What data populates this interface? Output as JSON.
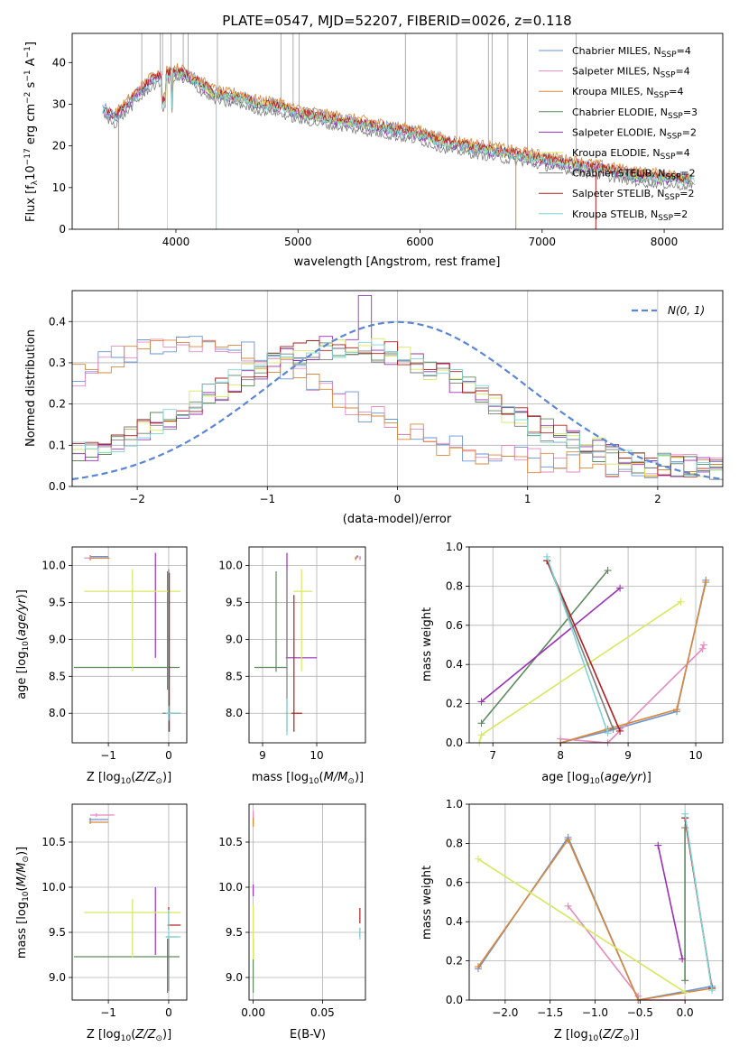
{
  "colors": {
    "Chabrier MILES": "#6a93d6",
    "Salpeter MILES": "#e58bbf",
    "Kroupa MILES": "#d8883a",
    "Chabrier ELODIE": "#5f8a5f",
    "Salpeter ELODIE": "#9a30b8",
    "Kroupa ELODIE": "#d7e860",
    "Chabrier STELIB": "#7f7f7f",
    "Salpeter STELIB": "#b01e1e",
    "Kroupa STELIB": "#7fd4d4"
  },
  "chart_data": [
    {
      "type": "line",
      "title": "PLATE=0547, MJD=52207, FIBERID=0026, z=0.118",
      "xlabel": "wavelength [Angstrom, rest frame]",
      "ylabel": "Flux [f_λ10^-17 erg cm^-2 s^-1 A^-1]",
      "xlim": [
        3150,
        8480
      ],
      "ylim": [
        0,
        47
      ],
      "xticks": [
        4000,
        5000,
        6000,
        7000,
        8000
      ],
      "yticks": [
        0,
        10,
        20,
        30,
        40
      ],
      "legend_position": "top-right",
      "grid": false,
      "continuum": {
        "x": [
          3400,
          3500,
          3600,
          3700,
          3800,
          3900,
          4000,
          4100,
          4200,
          4300,
          4400,
          4500,
          4600,
          4700,
          4800,
          4900,
          5000,
          5200,
          5400,
          5600,
          5800,
          6000,
          6200,
          6400,
          6600,
          6800,
          7000,
          7200,
          7400,
          7600,
          7800,
          8000,
          8200,
          8250
        ],
        "y": [
          29,
          27,
          30,
          33,
          36,
          37,
          38,
          37,
          35,
          33,
          32,
          32,
          31,
          30,
          30,
          29,
          28,
          27,
          26,
          25,
          24,
          23,
          21,
          20,
          19,
          18,
          17,
          16,
          15,
          14,
          13,
          12.5,
          12,
          12
        ]
      },
      "series": [
        {
          "name": "Chabrier MILES, N_SSP=4",
          "key": "Chabrier MILES",
          "offset": 0.5
        },
        {
          "name": "Salpeter MILES, N_SSP=4",
          "key": "Salpeter MILES",
          "offset": 0.3,
          "start": 3520
        },
        {
          "name": "Kroupa MILES, N_SSP=4",
          "key": "Kroupa MILES",
          "offset": 1.0,
          "start": 3500
        },
        {
          "name": "Chabrier ELODIE, N_SSP=3",
          "key": "Chabrier ELODIE",
          "offset": -0.4
        },
        {
          "name": "Salpeter ELODIE, N_SSP=2",
          "key": "Salpeter ELODIE",
          "offset": -0.8
        },
        {
          "name": "Kroupa ELODIE, N_SSP=4",
          "key": "Kroupa ELODIE",
          "offset": -0.2,
          "start": 3900
        },
        {
          "name": "Chabrier STELIB, N_SSP=2",
          "key": "Chabrier STELIB",
          "offset": -1.8
        },
        {
          "name": "Salpeter STELIB, N_SSP=2",
          "key": "Salpeter STELIB",
          "offset": 0.2
        },
        {
          "name": "Kroupa STELIB, N_SSP=2",
          "key": "Kroupa STELIB",
          "offset": -0.5
        }
      ],
      "drops": [
        {
          "x": 3530,
          "key": "Kroupa MILES"
        },
        {
          "x": 3930,
          "key": "Kroupa ELODIE"
        },
        {
          "x": 4330,
          "key": "Kroupa STELIB"
        },
        {
          "x": 6785,
          "key": "Kroupa MILES"
        },
        {
          "x": 7440,
          "key": "Salpeter STELIB"
        }
      ],
      "spikes": [
        3720,
        3870,
        3890,
        3960,
        4060,
        4100,
        4340,
        4860,
        4960,
        5010,
        5880,
        6300,
        6560,
        6590,
        6720,
        6880,
        7280
      ]
    },
    {
      "type": "line",
      "xlabel": "(data-model)/error",
      "ylabel": "Normed distribution",
      "xlim": [
        -2.5,
        2.5
      ],
      "ylim": [
        0,
        0.475
      ],
      "xticks": [
        -2,
        -1,
        0,
        1,
        2
      ],
      "yticks": [
        0.0,
        0.1,
        0.2,
        0.3,
        0.4
      ],
      "legend_label": "N(0,1)",
      "legend_position": "top-right",
      "grid": true
    },
    {
      "type": "scatter",
      "xlabel": "Z [log10(Z/Z_sun)]",
      "ylabel": "age [log10(age/yr)]",
      "xlim": [
        -1.6,
        0.3
      ],
      "ylim": [
        7.6,
        10.25
      ],
      "xticks": [
        -1,
        0
      ],
      "yticks": [
        8.0,
        8.5,
        9.0,
        9.5,
        10.0
      ],
      "grid": true
    },
    {
      "type": "scatter",
      "xlabel": "mass [log10(M/M_sun)]",
      "ylabel": "",
      "xlim": [
        8.75,
        10.9
      ],
      "ylim": [
        7.6,
        10.25
      ],
      "xticks": [
        9,
        10
      ],
      "yticks": [
        8.0,
        8.5,
        9.0,
        9.5,
        10.0
      ],
      "grid": true
    },
    {
      "type": "line",
      "xlabel": "age [log10(age/yr)]",
      "ylabel": "mass weight",
      "xlim": [
        6.65,
        10.4
      ],
      "ylim": [
        0,
        1.0
      ],
      "xticks": [
        7,
        8,
        9,
        10
      ],
      "yticks": [
        0.0,
        0.2,
        0.4,
        0.6,
        0.8,
        1.0
      ],
      "grid": true,
      "series": [
        {
          "key": "Chabrier MILES",
          "x": [
            8.0,
            8.7,
            9.72,
            10.15
          ],
          "y": [
            0.0,
            0.06,
            0.16,
            0.83
          ]
        },
        {
          "key": "Salpeter MILES",
          "x": [
            8.0,
            8.7,
            10.1,
            10.12
          ],
          "y": [
            0.02,
            0.0,
            0.48,
            0.5
          ]
        },
        {
          "key": "Kroupa MILES",
          "x": [
            8.0,
            8.7,
            9.72,
            10.15
          ],
          "y": [
            0.0,
            0.07,
            0.17,
            0.82
          ]
        },
        {
          "key": "Chabrier ELODIE",
          "x": [
            6.83,
            8.7
          ],
          "y": [
            0.1,
            0.88
          ]
        },
        {
          "key": "Salpeter ELODIE",
          "x": [
            6.83,
            8.88
          ],
          "y": [
            0.21,
            0.79
          ]
        },
        {
          "key": "Kroupa ELODIE",
          "x": [
            6.8,
            6.83,
            9.78
          ],
          "y": [
            0.0,
            0.04,
            0.72
          ]
        },
        {
          "key": "Chabrier STELIB",
          "x": [
            7.8,
            8.78
          ],
          "y": [
            0.93,
            0.07
          ]
        },
        {
          "key": "Salpeter STELIB",
          "x": [
            7.8,
            8.88
          ],
          "y": [
            0.93,
            0.06
          ]
        },
        {
          "key": "Kroupa STELIB",
          "x": [
            7.8,
            8.7
          ],
          "y": [
            0.95,
            0.05
          ]
        }
      ]
    },
    {
      "type": "scatter",
      "xlabel": "Z [log10(Z/Z_sun)]",
      "ylabel": "mass [log10(M/M_sun)]",
      "xlim": [
        -1.6,
        0.3
      ],
      "ylim": [
        8.75,
        10.92
      ],
      "xticks": [
        -1,
        0
      ],
      "yticks": [
        9.0,
        9.5,
        10.0,
        10.5
      ],
      "grid": true
    },
    {
      "type": "scatter",
      "xlabel": "E(B-V)",
      "ylabel": "",
      "xlim": [
        -0.003,
        0.081
      ],
      "ylim": [
        8.75,
        10.92
      ],
      "xticks": [
        0.0,
        0.05
      ],
      "yticks": [
        9.0,
        9.5,
        10.0,
        10.5
      ],
      "grid": true
    },
    {
      "type": "line",
      "xlabel": "Z [log10(Z/Z_sun)]",
      "ylabel": "mass weight",
      "xlim": [
        -2.4,
        0.42
      ],
      "ylim": [
        0,
        1.0
      ],
      "xticks": [
        -2.0,
        -1.5,
        -1.0,
        -0.5,
        0.0
      ],
      "yticks": [
        0.0,
        0.2,
        0.4,
        0.6,
        0.8,
        1.0
      ],
      "grid": true,
      "series": [
        {
          "key": "Chabrier MILES",
          "x": [
            -2.3,
            -1.3,
            -0.52,
            0.3
          ],
          "y": [
            0.16,
            0.83,
            0.0,
            0.07
          ]
        },
        {
          "key": "Salpeter MILES",
          "x": [
            -1.3,
            -0.52,
            -0.52,
            0.0
          ],
          "y": [
            0.48,
            0.02,
            0.0,
            0.0
          ]
        },
        {
          "key": "Kroupa MILES",
          "x": [
            -2.3,
            -1.3,
            -0.52,
            0.3
          ],
          "y": [
            0.17,
            0.82,
            0.0,
            0.06
          ]
        },
        {
          "key": "Chabrier ELODIE",
          "x": [
            0.0,
            0.0
          ],
          "y": [
            0.1,
            0.88
          ]
        },
        {
          "key": "Salpeter ELODIE",
          "x": [
            -0.3,
            -0.03
          ],
          "y": [
            0.79,
            0.21
          ]
        },
        {
          "key": "Kroupa ELODIE",
          "x": [
            -2.3,
            0.0
          ],
          "y": [
            0.72,
            0.04
          ]
        },
        {
          "key": "Chabrier STELIB",
          "x": [
            0.0,
            0.3
          ],
          "y": [
            0.93,
            0.06
          ]
        },
        {
          "key": "Salpeter STELIB",
          "x": [
            0.0,
            0.3
          ],
          "y": [
            0.93,
            0.06
          ]
        },
        {
          "key": "Kroupa STELIB",
          "x": [
            0.0,
            0.3
          ],
          "y": [
            0.95,
            0.05
          ]
        }
      ]
    }
  ]
}
